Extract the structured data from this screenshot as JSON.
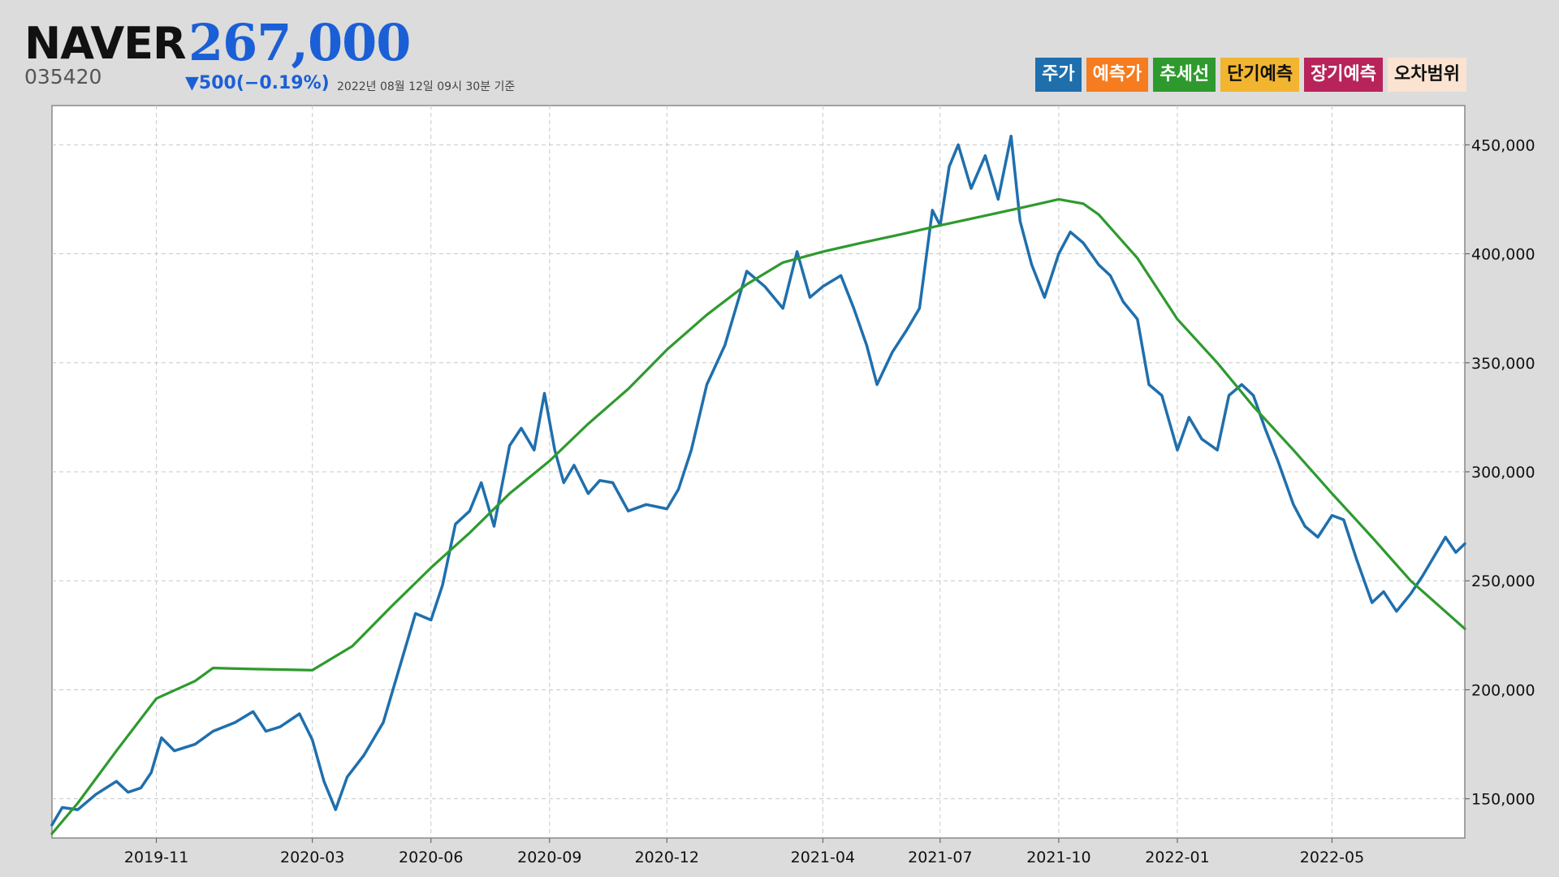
{
  "header": {
    "name": "NAVER",
    "price": "267,000",
    "code": "035420",
    "change": "▼500(−0.19%)",
    "timestamp": "2022년 08월 12일 09시 30분 기준"
  },
  "legend": [
    {
      "label": "주가",
      "bg": "#1f6fad",
      "fg": "#ffffff"
    },
    {
      "label": "예측가",
      "bg": "#f57c1f",
      "fg": "#ffffff"
    },
    {
      "label": "추세선",
      "bg": "#2e9a2e",
      "fg": "#ffffff"
    },
    {
      "label": "단기예측",
      "bg": "#f2b530",
      "fg": "#111111"
    },
    {
      "label": "장기예측",
      "bg": "#b8235a",
      "fg": "#ffffff"
    },
    {
      "label": "오차범위",
      "bg": "#fbe3d2",
      "fg": "#111111"
    }
  ],
  "chart_data": {
    "type": "line",
    "xlim": [
      "2019-08-12",
      "2022-08-12"
    ],
    "ylim": [
      132000,
      468000
    ],
    "y_ticks": [
      150000,
      200000,
      250000,
      300000,
      350000,
      400000,
      450000
    ],
    "y_tick_labels": [
      "150,000",
      "200,000",
      "250,000",
      "300,000",
      "350,000",
      "400,000",
      "450,000"
    ],
    "x_ticks": [
      "2019-11-01",
      "2020-03-01",
      "2020-06-01",
      "2020-09-01",
      "2020-12-01",
      "2021-04-01",
      "2021-07-01",
      "2021-10-01",
      "2022-01-01",
      "2022-05-01"
    ],
    "x_tick_labels": [
      "2019-11",
      "2020-03",
      "2020-06",
      "2020-09",
      "2020-12",
      "2021-04",
      "2021-07",
      "2021-10",
      "2022-01",
      "2022-05"
    ],
    "grid": true,
    "colors": {
      "price": "#1f6fad",
      "trend": "#2e9a2e"
    },
    "series": [
      {
        "name": "주가",
        "color": "#1f6fad",
        "points": [
          [
            "2019-08-12",
            138000
          ],
          [
            "2019-08-20",
            146000
          ],
          [
            "2019-09-01",
            145000
          ],
          [
            "2019-09-15",
            152000
          ],
          [
            "2019-10-01",
            158000
          ],
          [
            "2019-10-10",
            153000
          ],
          [
            "2019-10-20",
            155000
          ],
          [
            "2019-10-28",
            162000
          ],
          [
            "2019-11-05",
            178000
          ],
          [
            "2019-11-15",
            172000
          ],
          [
            "2019-12-01",
            175000
          ],
          [
            "2019-12-15",
            181000
          ],
          [
            "2020-01-01",
            185000
          ],
          [
            "2020-01-15",
            190000
          ],
          [
            "2020-01-25",
            181000
          ],
          [
            "2020-02-05",
            183000
          ],
          [
            "2020-02-20",
            189000
          ],
          [
            "2020-03-01",
            177000
          ],
          [
            "2020-03-10",
            158000
          ],
          [
            "2020-03-19",
            145000
          ],
          [
            "2020-03-28",
            160000
          ],
          [
            "2020-04-10",
            170000
          ],
          [
            "2020-04-25",
            185000
          ],
          [
            "2020-05-10",
            215000
          ],
          [
            "2020-05-20",
            235000
          ],
          [
            "2020-06-01",
            232000
          ],
          [
            "2020-06-10",
            248000
          ],
          [
            "2020-06-20",
            276000
          ],
          [
            "2020-07-01",
            282000
          ],
          [
            "2020-07-10",
            295000
          ],
          [
            "2020-07-20",
            275000
          ],
          [
            "2020-08-01",
            312000
          ],
          [
            "2020-08-10",
            320000
          ],
          [
            "2020-08-20",
            310000
          ],
          [
            "2020-08-28",
            336000
          ],
          [
            "2020-09-05",
            310000
          ],
          [
            "2020-09-12",
            295000
          ],
          [
            "2020-09-20",
            303000
          ],
          [
            "2020-10-01",
            290000
          ],
          [
            "2020-10-10",
            296000
          ],
          [
            "2020-10-20",
            295000
          ],
          [
            "2020-11-01",
            282000
          ],
          [
            "2020-11-15",
            285000
          ],
          [
            "2020-12-01",
            283000
          ],
          [
            "2020-12-10",
            292000
          ],
          [
            "2020-12-20",
            310000
          ],
          [
            "2021-01-01",
            340000
          ],
          [
            "2021-01-15",
            358000
          ],
          [
            "2021-02-01",
            392000
          ],
          [
            "2021-02-15",
            385000
          ],
          [
            "2021-03-01",
            375000
          ],
          [
            "2021-03-12",
            401000
          ],
          [
            "2021-03-22",
            380000
          ],
          [
            "2021-04-01",
            385000
          ],
          [
            "2021-04-15",
            390000
          ],
          [
            "2021-04-25",
            375000
          ],
          [
            "2021-05-05",
            358000
          ],
          [
            "2021-05-13",
            340000
          ],
          [
            "2021-05-25",
            355000
          ],
          [
            "2021-06-05",
            365000
          ],
          [
            "2021-06-15",
            375000
          ],
          [
            "2021-06-25",
            420000
          ],
          [
            "2021-07-01",
            413000
          ],
          [
            "2021-07-08",
            440000
          ],
          [
            "2021-07-15",
            450000
          ],
          [
            "2021-07-25",
            430000
          ],
          [
            "2021-08-05",
            445000
          ],
          [
            "2021-08-15",
            425000
          ],
          [
            "2021-08-25",
            454000
          ],
          [
            "2021-09-01",
            415000
          ],
          [
            "2021-09-10",
            395000
          ],
          [
            "2021-09-20",
            380000
          ],
          [
            "2021-10-01",
            400000
          ],
          [
            "2021-10-10",
            410000
          ],
          [
            "2021-10-20",
            405000
          ],
          [
            "2021-11-01",
            395000
          ],
          [
            "2021-11-10",
            390000
          ],
          [
            "2021-11-20",
            378000
          ],
          [
            "2021-12-01",
            370000
          ],
          [
            "2021-12-10",
            340000
          ],
          [
            "2021-12-20",
            335000
          ],
          [
            "2022-01-01",
            310000
          ],
          [
            "2022-01-10",
            325000
          ],
          [
            "2022-01-20",
            315000
          ],
          [
            "2022-02-01",
            310000
          ],
          [
            "2022-02-10",
            335000
          ],
          [
            "2022-02-20",
            340000
          ],
          [
            "2022-03-01",
            335000
          ],
          [
            "2022-03-10",
            320000
          ],
          [
            "2022-03-20",
            305000
          ],
          [
            "2022-04-01",
            285000
          ],
          [
            "2022-04-10",
            275000
          ],
          [
            "2022-04-20",
            270000
          ],
          [
            "2022-05-01",
            280000
          ],
          [
            "2022-05-10",
            278000
          ],
          [
            "2022-05-20",
            260000
          ],
          [
            "2022-06-01",
            240000
          ],
          [
            "2022-06-10",
            245000
          ],
          [
            "2022-06-20",
            236000
          ],
          [
            "2022-07-01",
            244000
          ],
          [
            "2022-07-10",
            252000
          ],
          [
            "2022-07-20",
            262000
          ],
          [
            "2022-07-28",
            270000
          ],
          [
            "2022-08-05",
            263000
          ],
          [
            "2022-08-12",
            267000
          ]
        ]
      },
      {
        "name": "추세선",
        "color": "#2e9a2e",
        "points": [
          [
            "2019-08-12",
            134000
          ],
          [
            "2019-09-01",
            148000
          ],
          [
            "2019-10-01",
            172000
          ],
          [
            "2019-11-01",
            196000
          ],
          [
            "2019-12-01",
            204000
          ],
          [
            "2019-12-15",
            210000
          ],
          [
            "2020-01-15",
            209500
          ],
          [
            "2020-03-01",
            209000
          ],
          [
            "2020-04-01",
            220000
          ],
          [
            "2020-05-01",
            238000
          ],
          [
            "2020-06-01",
            256000
          ],
          [
            "2020-07-01",
            272000
          ],
          [
            "2020-08-01",
            290000
          ],
          [
            "2020-09-01",
            305000
          ],
          [
            "2020-10-01",
            322000
          ],
          [
            "2020-11-01",
            338000
          ],
          [
            "2020-12-01",
            356000
          ],
          [
            "2021-01-01",
            372000
          ],
          [
            "2021-02-01",
            386000
          ],
          [
            "2021-03-01",
            396000
          ],
          [
            "2021-04-01",
            401000
          ],
          [
            "2021-05-01",
            405000
          ],
          [
            "2021-06-01",
            409000
          ],
          [
            "2021-07-01",
            413000
          ],
          [
            "2021-08-01",
            417000
          ],
          [
            "2021-09-01",
            421000
          ],
          [
            "2021-10-01",
            425000
          ],
          [
            "2021-10-20",
            423000
          ],
          [
            "2021-11-01",
            418000
          ],
          [
            "2021-12-01",
            398000
          ],
          [
            "2022-01-01",
            370000
          ],
          [
            "2022-02-01",
            350000
          ],
          [
            "2022-03-01",
            330000
          ],
          [
            "2022-04-01",
            310000
          ],
          [
            "2022-05-01",
            290000
          ],
          [
            "2022-06-01",
            270000
          ],
          [
            "2022-07-01",
            250000
          ],
          [
            "2022-08-12",
            228000
          ]
        ]
      }
    ]
  }
}
